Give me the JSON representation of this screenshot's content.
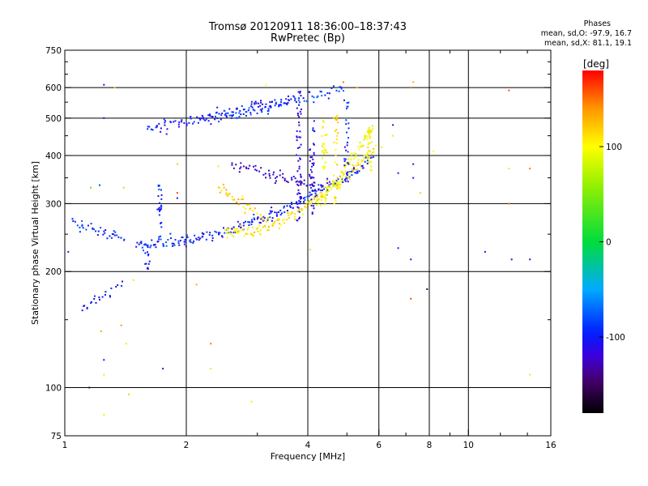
{
  "header": {
    "title_line1": "Tromsø 20120911 18:36:00–18:37:43",
    "title_line2": "RwPretec (Bp)"
  },
  "stats": {
    "heading": "Phases",
    "line_o": "mean, sd,O: -97.9, 16.7",
    "line_x": "mean, sd,X: 81.1, 19.1"
  },
  "colorbar": {
    "label": "[deg]",
    "min": -180,
    "max": 180,
    "ticks": [
      "100",
      "0",
      "-100"
    ],
    "tick_values": [
      100,
      0,
      -100
    ]
  },
  "chart_data": {
    "type": "scatter",
    "x_scale": "log",
    "y_scale": "log",
    "xlim": [
      1,
      16
    ],
    "ylim": [
      75,
      750
    ],
    "xlabel": "Frequency [MHz]",
    "ylabel": "Stationary phase Virtual Height [km]",
    "x_ticks": [
      1,
      2,
      4,
      6,
      8,
      10,
      16
    ],
    "x_tick_labels": [
      "1",
      "2",
      "4",
      "6",
      "8",
      "10",
      "16"
    ],
    "y_ticks": [
      75,
      100,
      200,
      300,
      400,
      500,
      600,
      750
    ],
    "y_tick_labels": [
      "75",
      "100",
      "200",
      "300",
      "400",
      "500",
      "600",
      "750"
    ],
    "x_grid": [
      2,
      4,
      6,
      8,
      10
    ],
    "y_grid": [
      100,
      200,
      300,
      400,
      500,
      600
    ],
    "color_variable": "phase [deg]",
    "traces": [
      {
        "x_start": 1.5,
        "x_end": 5.8,
        "h_start": 236,
        "h_end": 390,
        "power": 2.2,
        "phase": -95,
        "n": 160
      },
      {
        "x_start": 2.5,
        "x_end": 5.9,
        "h_start": 252,
        "h_end": 420,
        "power": 2.2,
        "phase": 110,
        "n": 110
      },
      {
        "x_start": 1.6,
        "x_end": 3.6,
        "h_start": 470,
        "h_end": 560,
        "power": 1.2,
        "phase": -100,
        "n": 70
      },
      {
        "x_start": 2.2,
        "x_end": 4.9,
        "h_start": 490,
        "h_end": 600,
        "power": 1.2,
        "phase": -90,
        "n": 60
      },
      {
        "x_start": 2.6,
        "x_end": 4.3,
        "h_start": 380,
        "h_end": 330,
        "power": 1.0,
        "phase": -120,
        "n": 40
      },
      {
        "x_start": 2.4,
        "x_end": 3.2,
        "h_start": 330,
        "h_end": 270,
        "power": 1.0,
        "phase": 120,
        "n": 30
      },
      {
        "x_start": 4.2,
        "x_end": 5.8,
        "h_start": 300,
        "h_end": 470,
        "power": 1.3,
        "phase": 95,
        "n": 50
      },
      {
        "x_start": 1.05,
        "x_end": 1.4,
        "h_start": 270,
        "h_end": 240,
        "power": 1.0,
        "phase": -95,
        "n": 25
      },
      {
        "x_start": 1.1,
        "x_end": 1.38,
        "h_start": 160,
        "h_end": 185,
        "power": 1.0,
        "phase": -105,
        "n": 14
      }
    ],
    "columns": [
      {
        "x": 1.72,
        "h_min": 255,
        "h_max": 335,
        "phase": -100,
        "n": 22
      },
      {
        "x": 1.6,
        "h_min": 200,
        "h_max": 240,
        "phase": -105,
        "n": 12
      },
      {
        "x": 3.8,
        "h_min": 270,
        "h_max": 600,
        "phase": -115,
        "n": 55
      },
      {
        "x": 4.1,
        "h_min": 280,
        "h_max": 500,
        "phase": -110,
        "n": 40
      },
      {
        "x": 4.4,
        "h_min": 290,
        "h_max": 520,
        "phase": 95,
        "n": 35
      },
      {
        "x": 4.7,
        "h_min": 300,
        "h_max": 520,
        "phase": 110,
        "n": 30
      },
      {
        "x": 5.0,
        "h_min": 340,
        "h_max": 560,
        "phase": -100,
        "n": 30
      },
      {
        "x": 5.7,
        "h_min": 360,
        "h_max": 480,
        "phase": 100,
        "n": 28
      }
    ],
    "scattered": [
      {
        "x": 1.25,
        "h": 610,
        "phase": -95
      },
      {
        "x": 1.33,
        "h": 600,
        "phase": 120
      },
      {
        "x": 1.25,
        "h": 500,
        "phase": -100
      },
      {
        "x": 1.16,
        "h": 330,
        "phase": 40
      },
      {
        "x": 1.22,
        "h": 335,
        "phase": -80
      },
      {
        "x": 1.02,
        "h": 225,
        "phase": -90
      },
      {
        "x": 1.23,
        "h": 140,
        "phase": 130
      },
      {
        "x": 1.25,
        "h": 118,
        "phase": -110
      },
      {
        "x": 1.25,
        "h": 108,
        "phase": 110
      },
      {
        "x": 1.15,
        "h": 100,
        "phase": -150
      },
      {
        "x": 1.25,
        "h": 85,
        "phase": 110
      },
      {
        "x": 1.44,
        "h": 96,
        "phase": 120
      },
      {
        "x": 1.42,
        "h": 130,
        "phase": 110
      },
      {
        "x": 1.38,
        "h": 145,
        "phase": 140
      },
      {
        "x": 1.4,
        "h": 330,
        "phase": 120
      },
      {
        "x": 1.48,
        "h": 190,
        "phase": 110
      },
      {
        "x": 1.75,
        "h": 112,
        "phase": -100
      },
      {
        "x": 1.9,
        "h": 320,
        "phase": 160
      },
      {
        "x": 1.9,
        "h": 380,
        "phase": 120
      },
      {
        "x": 1.9,
        "h": 310,
        "phase": -100
      },
      {
        "x": 2.12,
        "h": 185,
        "phase": 130
      },
      {
        "x": 2.3,
        "h": 130,
        "phase": 150
      },
      {
        "x": 2.3,
        "h": 112,
        "phase": 110
      },
      {
        "x": 2.4,
        "h": 375,
        "phase": 110
      },
      {
        "x": 2.9,
        "h": 92,
        "phase": 110
      },
      {
        "x": 3.15,
        "h": 610,
        "phase": 100
      },
      {
        "x": 4.05,
        "h": 228,
        "phase": 120
      },
      {
        "x": 4.9,
        "h": 620,
        "phase": 150
      },
      {
        "x": 5.3,
        "h": 600,
        "phase": 130
      },
      {
        "x": 6.1,
        "h": 420,
        "phase": 110
      },
      {
        "x": 6.5,
        "h": 480,
        "phase": -95
      },
      {
        "x": 6.5,
        "h": 450,
        "phase": 110
      },
      {
        "x": 6.7,
        "h": 360,
        "phase": -100
      },
      {
        "x": 6.7,
        "h": 230,
        "phase": -100
      },
      {
        "x": 7.2,
        "h": 600,
        "phase": 150
      },
      {
        "x": 7.3,
        "h": 620,
        "phase": 130
      },
      {
        "x": 7.3,
        "h": 380,
        "phase": -100
      },
      {
        "x": 7.3,
        "h": 350,
        "phase": -95
      },
      {
        "x": 7.2,
        "h": 215,
        "phase": -110
      },
      {
        "x": 7.2,
        "h": 170,
        "phase": 160
      },
      {
        "x": 7.6,
        "h": 320,
        "phase": 120
      },
      {
        "x": 7.9,
        "h": 180,
        "phase": -150
      },
      {
        "x": 8.2,
        "h": 410,
        "phase": 100
      },
      {
        "x": 11.0,
        "h": 225,
        "phase": -100
      },
      {
        "x": 12.6,
        "h": 590,
        "phase": 160
      },
      {
        "x": 12.6,
        "h": 370,
        "phase": 110
      },
      {
        "x": 12.6,
        "h": 300,
        "phase": 150
      },
      {
        "x": 12.8,
        "h": 215,
        "phase": -100
      },
      {
        "x": 14.2,
        "h": 370,
        "phase": 150
      },
      {
        "x": 14.2,
        "h": 215,
        "phase": -100
      },
      {
        "x": 14.2,
        "h": 108,
        "phase": 110
      }
    ]
  }
}
